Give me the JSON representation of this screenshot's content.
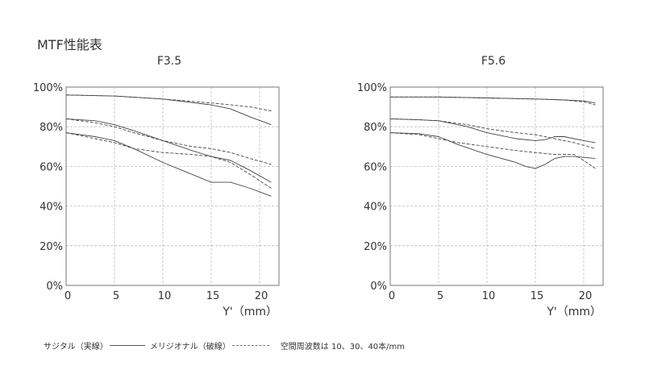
{
  "page": {
    "title": "MTF性能表"
  },
  "legend": {
    "sagittal": "サジタル（実線）",
    "meridional": "メリジオナル（破線）",
    "note": "空間周波数は 10、30、40本/mm"
  },
  "colors": {
    "grid": "#bdbdbd",
    "frame": "#777777",
    "line": "#444444",
    "text": "#333333"
  },
  "chart_data": [
    {
      "type": "line",
      "title": "F3.5",
      "xlabel": "Y'（mm）",
      "ylabel": "",
      "xlim": [
        0,
        22
      ],
      "ylim": [
        0,
        100
      ],
      "xticks": [
        0,
        5,
        10,
        15,
        20
      ],
      "yticks": [
        0,
        20,
        40,
        60,
        80,
        100
      ],
      "ytick_labels": [
        "0%",
        "20%",
        "40%",
        "60%",
        "80%",
        "100%"
      ],
      "grid": true,
      "series": [
        {
          "style": "solid",
          "x": [
            0,
            5,
            10,
            15,
            17,
            19,
            21.2
          ],
          "y": [
            96,
            95.5,
            94,
            91,
            89,
            85,
            81
          ]
        },
        {
          "style": "dashed",
          "x": [
            0,
            5,
            10,
            15,
            17,
            19,
            21.2
          ],
          "y": [
            96,
            95.5,
            94,
            92,
            91,
            90,
            88
          ]
        },
        {
          "style": "solid",
          "x": [
            0,
            3,
            5,
            7,
            10,
            13,
            15,
            17,
            19,
            21.2
          ],
          "y": [
            84,
            83,
            81,
            78,
            73,
            68,
            65,
            63,
            58,
            52
          ]
        },
        {
          "style": "dashed",
          "x": [
            0,
            3,
            5,
            7,
            10,
            13,
            15,
            17,
            19,
            21.2
          ],
          "y": [
            84,
            82,
            80,
            77,
            73,
            70,
            69,
            67,
            64,
            61
          ]
        },
        {
          "style": "solid",
          "x": [
            0,
            3,
            5,
            7,
            10,
            13,
            15,
            17,
            19,
            21.2
          ],
          "y": [
            77,
            75,
            73,
            69,
            62,
            56,
            52,
            52,
            49,
            45
          ]
        },
        {
          "style": "dashed",
          "x": [
            0,
            3,
            5,
            7,
            10,
            13,
            15,
            17,
            19,
            21.2
          ],
          "y": [
            77,
            74,
            72,
            69,
            67,
            66,
            65,
            62,
            56,
            49
          ]
        }
      ]
    },
    {
      "type": "line",
      "title": "F5.6",
      "xlabel": "Y'（mm）",
      "ylabel": "",
      "xlim": [
        0,
        22
      ],
      "ylim": [
        0,
        100
      ],
      "xticks": [
        0,
        5,
        10,
        15,
        20
      ],
      "yticks": [
        0,
        20,
        40,
        60,
        80,
        100
      ],
      "ytick_labels": [
        "0%",
        "20%",
        "40%",
        "60%",
        "80%",
        "100%"
      ],
      "grid": true,
      "series": [
        {
          "style": "solid",
          "x": [
            0,
            5,
            10,
            15,
            18,
            20,
            21.2
          ],
          "y": [
            95,
            95,
            94.5,
            94,
            93.5,
            93,
            92
          ]
        },
        {
          "style": "dashed",
          "x": [
            0,
            5,
            10,
            15,
            18,
            20,
            21.2
          ],
          "y": [
            95,
            95,
            94.5,
            94,
            93.5,
            92.5,
            91
          ]
        },
        {
          "style": "solid",
          "x": [
            0,
            3,
            5,
            8,
            10,
            13,
            15,
            16,
            17,
            18,
            19,
            20,
            21.2
          ],
          "y": [
            84,
            83.5,
            83,
            80,
            77,
            74,
            73,
            73.5,
            75,
            75,
            74,
            73,
            72
          ]
        },
        {
          "style": "dashed",
          "x": [
            0,
            3,
            5,
            8,
            10,
            13,
            15,
            17,
            19,
            21.2
          ],
          "y": [
            84,
            83.5,
            83,
            81,
            79,
            77,
            76,
            74,
            72,
            69
          ]
        },
        {
          "style": "solid",
          "x": [
            0,
            3,
            5,
            7,
            10,
            13,
            14,
            15,
            16,
            17,
            18,
            19,
            21.2
          ],
          "y": [
            77,
            76.5,
            75,
            71,
            66,
            62,
            60,
            59,
            61,
            64,
            65,
            65,
            64
          ]
        },
        {
          "style": "dashed",
          "x": [
            0,
            3,
            5,
            7,
            10,
            13,
            15,
            17,
            19,
            20,
            21.2
          ],
          "y": [
            77,
            76,
            74,
            72,
            70,
            68,
            67,
            66,
            66,
            63,
            59
          ]
        }
      ]
    }
  ]
}
